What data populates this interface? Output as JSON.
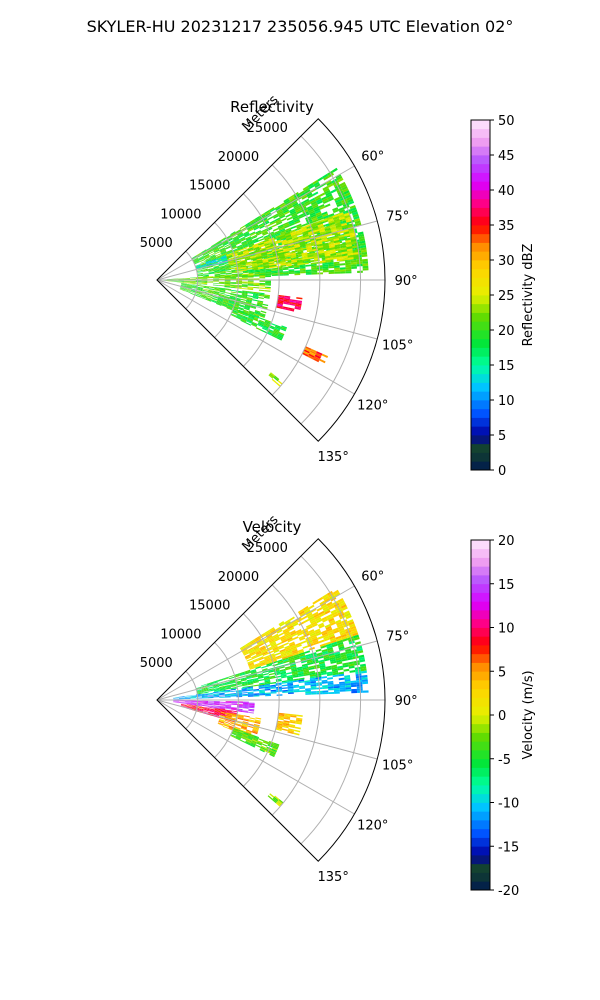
{
  "title": "SKYLER-HU  20231217  235056.945 UTC Elevation 02°",
  "chart_data": [
    {
      "type": "polar-sector",
      "title": "Reflectivity",
      "radial_label": "Meters",
      "r_ticks": [
        "5000",
        "10000",
        "15000",
        "20000",
        "25000"
      ],
      "r_values": [
        5000,
        10000,
        15000,
        20000,
        25000
      ],
      "rlim": [
        0,
        28000
      ],
      "theta_ticks": [
        "60°",
        "75°",
        "90°",
        "105°",
        "120°",
        "135°"
      ],
      "theta_values": [
        60,
        75,
        90,
        105,
        120,
        135
      ],
      "thetalim": [
        45,
        135
      ],
      "grid": true,
      "colorbar": {
        "label": "Reflectivity dBZ",
        "ticks": [
          "0",
          "5",
          "10",
          "15",
          "20",
          "25",
          "30",
          "35",
          "40",
          "45",
          "50"
        ],
        "range": [
          0,
          50
        ]
      },
      "features": [
        {
          "az": [
            58,
            88
          ],
          "r": [
            5000,
            26000
          ],
          "value": 20
        },
        {
          "az": [
            70,
            84
          ],
          "r": [
            9000,
            25000
          ],
          "value": 24
        },
        {
          "az": [
            86,
            96
          ],
          "r": [
            500,
            14000
          ],
          "value": 22
        },
        {
          "az": [
            97,
            112
          ],
          "r": [
            3000,
            14000
          ],
          "value": 20
        },
        {
          "az": [
            110,
            116
          ],
          "r": [
            10000,
            17000
          ],
          "value": 19
        },
        {
          "az": [
            70,
            76
          ],
          "r": [
            5000,
            9000
          ],
          "value": 13
        },
        {
          "az": [
            97,
            103
          ],
          "r": [
            15000,
            18000
          ],
          "value": 37
        },
        {
          "az": [
            114,
            117
          ],
          "r": [
            20000,
            23000
          ],
          "value": 33
        },
        {
          "az": [
            129,
            131
          ],
          "r": [
            18000,
            20000
          ],
          "value": 23
        }
      ]
    },
    {
      "type": "polar-sector",
      "title": "Velocity",
      "radial_label": "Meters",
      "r_ticks": [
        "5000",
        "10000",
        "15000",
        "20000",
        "25000"
      ],
      "r_values": [
        5000,
        10000,
        15000,
        20000,
        25000
      ],
      "rlim": [
        0,
        28000
      ],
      "theta_ticks": [
        "60°",
        "75°",
        "90°",
        "105°",
        "120°",
        "135°"
      ],
      "theta_values": [
        60,
        75,
        90,
        105,
        120,
        135
      ],
      "thetalim": [
        45,
        135
      ],
      "grid": true,
      "colorbar": {
        "label": "Velocity (m/s)",
        "ticks": [
          "-20",
          "-15",
          "-10",
          "-5",
          "0",
          "5",
          "10",
          "15",
          "20"
        ],
        "range": [
          -20,
          20
        ]
      },
      "features": [
        {
          "az": [
            58,
            72
          ],
          "r": [
            12000,
            26000
          ],
          "value": 2
        },
        {
          "az": [
            72,
            82
          ],
          "r": [
            5000,
            26000
          ],
          "value": -5
        },
        {
          "az": [
            82,
            88
          ],
          "r": [
            2000,
            26000
          ],
          "value": -11
        },
        {
          "az": [
            91,
            98
          ],
          "r": [
            2000,
            12000
          ],
          "value": 14
        },
        {
          "az": [
            98,
            106
          ],
          "r": [
            3000,
            10000
          ],
          "value": 9
        },
        {
          "az": [
            100,
            112
          ],
          "r": [
            8000,
            13000
          ],
          "value": 4
        },
        {
          "az": [
            110,
            116
          ],
          "r": [
            10000,
            16000
          ],
          "value": -3
        },
        {
          "az": [
            96,
            104
          ],
          "r": [
            15000,
            18000
          ],
          "value": 3
        },
        {
          "az": [
            129,
            131
          ],
          "r": [
            18000,
            20000
          ],
          "value": -2
        }
      ]
    }
  ]
}
